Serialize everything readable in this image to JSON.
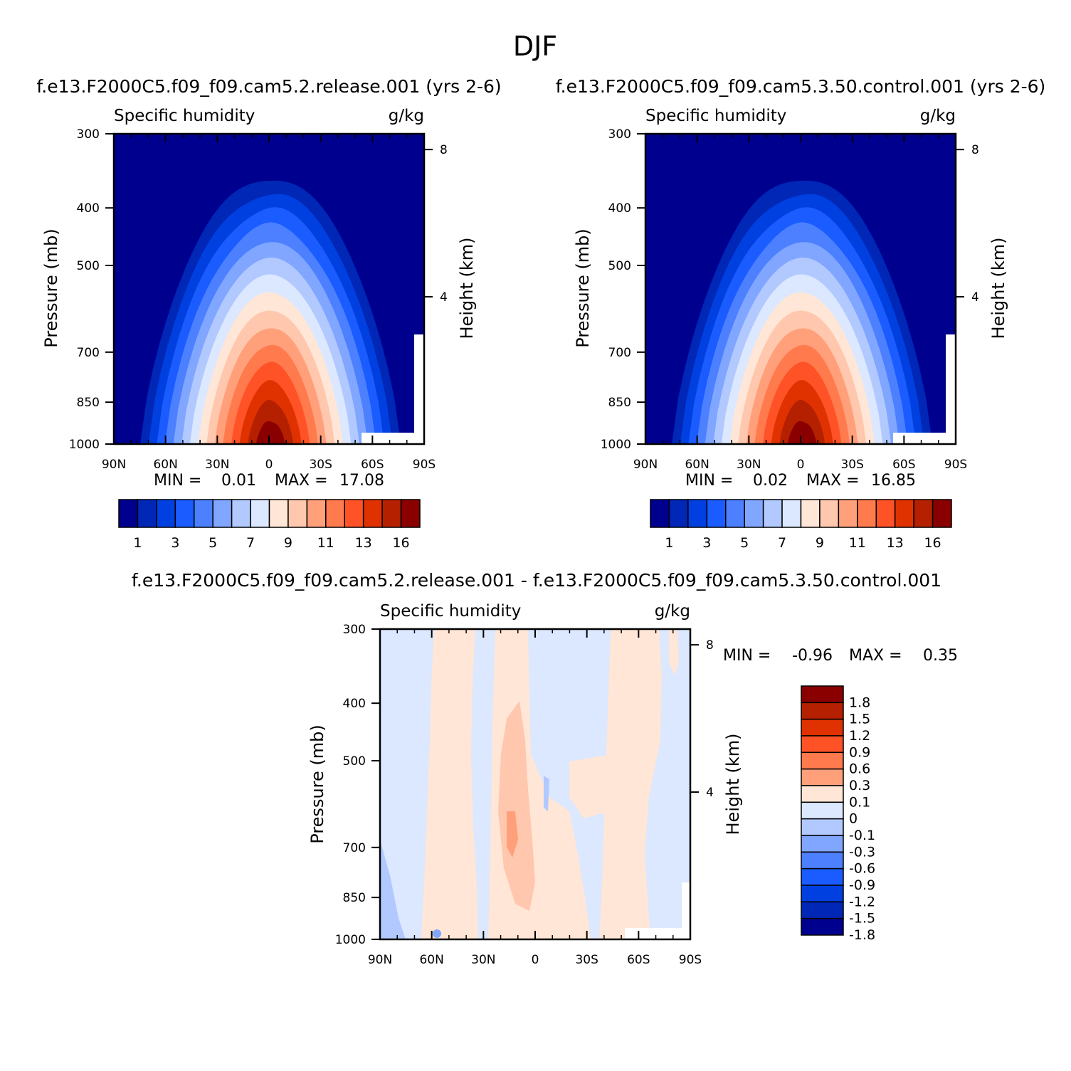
{
  "season": "DJF",
  "panels": [
    {
      "id": "case1",
      "case_title": "f.e13.F2000C5.f09_f09.cam5.2.release.001  (yrs 2-6)",
      "var_title": "Specific humidity",
      "units": "g/kg",
      "min_label": "MIN =",
      "min_value": "0.01",
      "max_label": "MAX =",
      "max_value": "17.08"
    },
    {
      "id": "case2",
      "case_title": "f.e13.F2000C5.f09_f09.cam5.3.50.control.001  (yrs 2-6)",
      "var_title": "Specific humidity",
      "units": "g/kg",
      "min_label": "MIN =",
      "min_value": "0.02",
      "max_label": "MAX =",
      "max_value": "16.85"
    },
    {
      "id": "diff",
      "case_title": "f.e13.F2000C5.f09_f09.cam5.2.release.001 - f.e13.F2000C5.f09_f09.cam5.3.50.control.001",
      "var_title": "Specific humidity",
      "units": "g/kg",
      "min_label": "MIN =",
      "min_value": "-0.96",
      "max_label": "MAX =",
      "max_value": "0.35"
    }
  ],
  "axes": {
    "ylabel": "Pressure (mb)",
    "ylabel_right": "Height (km)",
    "pressure_ticks": [
      "300",
      "400",
      "500",
      "700",
      "850",
      "1000"
    ],
    "height_ticks": [
      "8",
      "4"
    ],
    "lat_ticks": [
      "90N",
      "60N",
      "30N",
      "0",
      "30S",
      "60S",
      "90S"
    ]
  },
  "legends": {
    "abs_colors": [
      "#00008f",
      "#0027b6",
      "#0040e0",
      "#1a5cff",
      "#4c80ff",
      "#80a6ff",
      "#b2c9ff",
      "#dbe8ff",
      "#ffe6d6",
      "#ffc7ad",
      "#ffa07a",
      "#ff7a4d",
      "#ff5226",
      "#e03200",
      "#b52000",
      "#8a0000"
    ],
    "abs_labels": [
      "1",
      "3",
      "5",
      "7",
      "9",
      "11",
      "13",
      "16"
    ],
    "diff_colors": [
      "#8a0000",
      "#b52000",
      "#e03200",
      "#ff5226",
      "#ff7a4d",
      "#ffa07a",
      "#ffe6d6",
      "#dbe8ff",
      "#b2c9ff",
      "#80a6ff",
      "#4c80ff",
      "#1a5cff",
      "#0040e0",
      "#0027b6",
      "#00008f"
    ],
    "diff_labels": [
      "1.8",
      "1.5",
      "1.2",
      "0.9",
      "0.6",
      "0.3",
      "0.1",
      "0",
      "-0.1",
      "-0.3",
      "-0.6",
      "-0.9",
      "-1.2",
      "-1.5",
      "-1.8"
    ]
  },
  "chart_data": [
    {
      "type": "heatmap",
      "title": "Specific humidity",
      "subtitle": "f.e13.F2000C5.f09_f09.cam5.2.release.001  (yrs 2-6)",
      "xlabel": "",
      "ylabel": "Pressure (mb)",
      "ylabel_right": "Height (km)",
      "units": "g/kg",
      "x": [
        "90N",
        "60N",
        "30N",
        "0",
        "30S",
        "60S",
        "90S"
      ],
      "y_pressure": [
        300,
        400,
        500,
        700,
        850,
        1000
      ],
      "contour_levels": [
        1,
        2,
        3,
        4,
        5,
        6,
        7,
        8,
        9,
        10,
        11,
        12,
        13,
        14,
        16
      ],
      "min": 0.01,
      "max": 17.08,
      "max_location": {
        "lat": 0,
        "pressure": 1000
      }
    },
    {
      "type": "heatmap",
      "title": "Specific humidity",
      "subtitle": "f.e13.F2000C5.f09_f09.cam5.3.50.control.001  (yrs 2-6)",
      "xlabel": "",
      "ylabel": "Pressure (mb)",
      "ylabel_right": "Height (km)",
      "units": "g/kg",
      "x": [
        "90N",
        "60N",
        "30N",
        "0",
        "30S",
        "60S",
        "90S"
      ],
      "y_pressure": [
        300,
        400,
        500,
        700,
        850,
        1000
      ],
      "contour_levels": [
        1,
        2,
        3,
        4,
        5,
        6,
        7,
        8,
        9,
        10,
        11,
        12,
        13,
        14,
        16
      ],
      "min": 0.02,
      "max": 16.85,
      "max_location": {
        "lat": 0,
        "pressure": 1000
      }
    },
    {
      "type": "heatmap",
      "title": "Specific humidity",
      "subtitle": "f.e13.F2000C5.f09_f09.cam5.2.release.001 - f.e13.F2000C5.f09_f09.cam5.3.50.control.001",
      "xlabel": "",
      "ylabel": "Pressure (mb)",
      "ylabel_right": "Height (km)",
      "units": "g/kg",
      "x": [
        "90N",
        "60N",
        "30N",
        "0",
        "30S",
        "60S",
        "90S"
      ],
      "y_pressure": [
        300,
        400,
        500,
        700,
        850,
        1000
      ],
      "contour_levels": [
        -1.8,
        -1.5,
        -1.2,
        -0.9,
        -0.6,
        -0.3,
        -0.1,
        0,
        0.1,
        0.3,
        0.6,
        0.9,
        1.2,
        1.5,
        1.8
      ],
      "min": -0.96,
      "max": 0.35
    }
  ]
}
